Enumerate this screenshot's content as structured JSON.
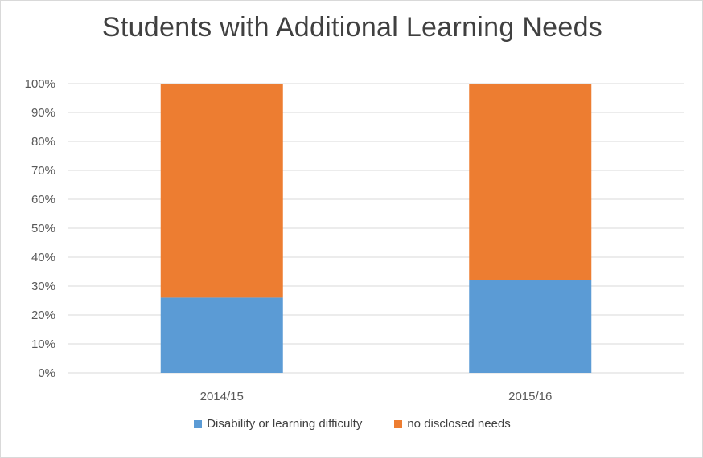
{
  "chart_data": {
    "type": "bar",
    "stacked": true,
    "title": "Students with Additional Learning Needs",
    "xlabel": "",
    "ylabel": "",
    "categories": [
      "2014/15",
      "2015/16"
    ],
    "series": [
      {
        "name": "Disability or learning difficulty",
        "values": [
          26,
          32
        ],
        "color": "#5b9bd5"
      },
      {
        "name": "no disclosed needs",
        "values": [
          74,
          68
        ],
        "color": "#ed7d31"
      }
    ],
    "ylim": [
      0,
      100
    ],
    "yticks": [
      "0%",
      "10%",
      "20%",
      "30%",
      "40%",
      "50%",
      "60%",
      "70%",
      "80%",
      "90%",
      "100%"
    ],
    "grid": true,
    "legend_position": "bottom"
  }
}
